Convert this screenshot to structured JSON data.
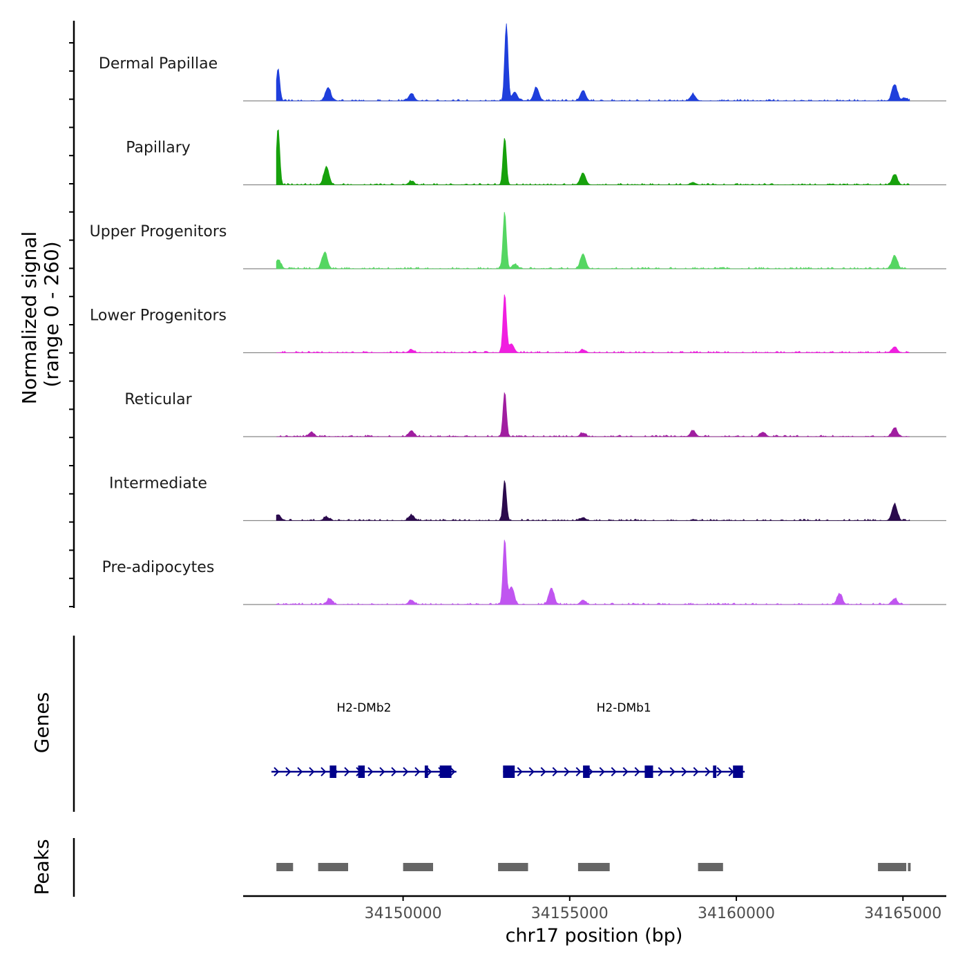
{
  "chart_data": {
    "type": "area",
    "ylabel_line1": "Normalized signal",
    "ylabel_line2": "(range 0 - 260)",
    "ylim": [
      0,
      260
    ],
    "xlabel": "chr17 position (bp)",
    "xlim": [
      34145200,
      34166300
    ],
    "xticks": [
      34150000,
      34155000,
      34160000,
      34165000
    ],
    "xtick_labels": [
      "34150000",
      "34155000",
      "34160000",
      "34165000"
    ],
    "tracks": [
      {
        "name": "Dermal Papillae",
        "color": "#1f3fdc",
        "peaks": [
          [
            34146250,
            110
          ],
          [
            34147750,
            45
          ],
          [
            34150250,
            25
          ],
          [
            34153100,
            260
          ],
          [
            34153350,
            30
          ],
          [
            34154000,
            45
          ],
          [
            34155400,
            35
          ],
          [
            34158700,
            22
          ],
          [
            34164750,
            55
          ],
          [
            34165050,
            10
          ]
        ]
      },
      {
        "name": "Papillary",
        "color": "#17a10c",
        "peaks": [
          [
            34146250,
            190
          ],
          [
            34147700,
            60
          ],
          [
            34150250,
            12
          ],
          [
            34153050,
            160
          ],
          [
            34155400,
            40
          ],
          [
            34158700,
            8
          ],
          [
            34164750,
            35
          ]
        ]
      },
      {
        "name": "Upper Progenitors",
        "color": "#55d662",
        "peaks": [
          [
            34146250,
            30
          ],
          [
            34147650,
            55
          ],
          [
            34153050,
            190
          ],
          [
            34153350,
            15
          ],
          [
            34155400,
            50
          ],
          [
            34164750,
            45
          ]
        ]
      },
      {
        "name": "Lower Progenitors",
        "color": "#f01fe0",
        "peaks": [
          [
            34150250,
            10
          ],
          [
            34153050,
            195
          ],
          [
            34153250,
            30
          ],
          [
            34155400,
            10
          ],
          [
            34164750,
            20
          ]
        ]
      },
      {
        "name": "Reticular",
        "color": "#a01ea0",
        "peaks": [
          [
            34147250,
            15
          ],
          [
            34150250,
            20
          ],
          [
            34153050,
            150
          ],
          [
            34155400,
            12
          ],
          [
            34158700,
            20
          ],
          [
            34160800,
            15
          ],
          [
            34164750,
            30
          ]
        ]
      },
      {
        "name": "Intermediate",
        "color": "#2b0a4d",
        "peaks": [
          [
            34146250,
            20
          ],
          [
            34147700,
            12
          ],
          [
            34150250,
            18
          ],
          [
            34153050,
            135
          ],
          [
            34155400,
            10
          ],
          [
            34164750,
            55
          ]
        ]
      },
      {
        "name": "Pre-adipocytes",
        "color": "#c055f0",
        "peaks": [
          [
            34147800,
            20
          ],
          [
            34150250,
            15
          ],
          [
            34153050,
            220
          ],
          [
            34153250,
            60
          ],
          [
            34154450,
            55
          ],
          [
            34155400,
            15
          ],
          [
            34163100,
            35
          ],
          [
            34164750,
            20
          ]
        ]
      }
    ],
    "genes_label": "Genes",
    "genes": [
      {
        "name": "H2-DMb2",
        "start": 34146050,
        "end": 34151600,
        "exons": [
          [
            34147800,
            34148000
          ],
          [
            34148650,
            34148850
          ],
          [
            34150650,
            34150750
          ],
          [
            34151100,
            34151450
          ]
        ]
      },
      {
        "name": "H2-DMb1",
        "start": 34153000,
        "end": 34160250,
        "exons": [
          [
            34153000,
            34153350
          ],
          [
            34155400,
            34155600
          ],
          [
            34157250,
            34157500
          ],
          [
            34159300,
            34159400
          ],
          [
            34159900,
            34160200
          ]
        ]
      }
    ],
    "peaks_label": "Peaks",
    "peak_regions": [
      [
        34146200,
        34146700
      ],
      [
        34147450,
        34148350
      ],
      [
        34150000,
        34150900
      ],
      [
        34152850,
        34153750
      ],
      [
        34155250,
        34156200
      ],
      [
        34158850,
        34159600
      ],
      [
        34164250,
        34165100
      ],
      [
        34165150,
        34165230
      ]
    ]
  }
}
